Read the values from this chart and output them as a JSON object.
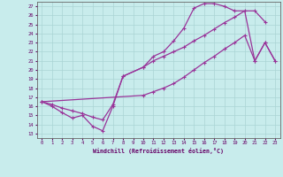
{
  "xlabel": "Windchill (Refroidissement éolien,°C)",
  "xlim": [
    -0.5,
    23.5
  ],
  "ylim": [
    12.5,
    27.5
  ],
  "xticks": [
    0,
    1,
    2,
    3,
    4,
    5,
    6,
    7,
    8,
    9,
    10,
    11,
    12,
    13,
    14,
    15,
    16,
    17,
    18,
    19,
    20,
    21,
    22,
    23
  ],
  "yticks": [
    13,
    14,
    15,
    16,
    17,
    18,
    19,
    20,
    21,
    22,
    23,
    24,
    25,
    26,
    27
  ],
  "line_color": "#993399",
  "bg_color": "#c8ecec",
  "grid_color": "#aad4d4",
  "curve1_x": [
    0,
    1,
    2,
    3,
    4,
    5,
    6,
    7,
    8,
    10,
    11,
    12,
    13,
    14,
    15,
    16,
    17,
    18,
    19,
    21,
    22
  ],
  "curve1_y": [
    16.5,
    16.0,
    15.3,
    14.7,
    15.0,
    13.8,
    13.3,
    16.0,
    19.3,
    20.3,
    21.5,
    22.0,
    23.2,
    24.6,
    26.8,
    27.3,
    27.3,
    27.0,
    26.5,
    26.5,
    25.3
  ],
  "curve2_x": [
    0,
    1,
    2,
    3,
    4,
    5,
    6,
    7,
    8,
    10,
    11,
    12,
    13,
    14,
    15,
    16,
    17,
    18,
    19,
    20,
    21,
    22,
    23
  ],
  "curve2_y": [
    16.5,
    16.2,
    15.8,
    15.5,
    15.2,
    14.8,
    14.5,
    16.2,
    19.3,
    20.3,
    21.0,
    21.5,
    22.0,
    22.5,
    23.2,
    23.8,
    24.5,
    25.2,
    25.8,
    26.5,
    21.0,
    23.0,
    21.0
  ],
  "curve3_x": [
    0,
    10,
    11,
    12,
    13,
    14,
    15,
    16,
    17,
    18,
    19,
    20,
    21,
    22,
    23
  ],
  "curve3_y": [
    16.5,
    17.2,
    17.6,
    18.0,
    18.5,
    19.2,
    20.0,
    20.8,
    21.5,
    22.3,
    23.0,
    23.8,
    21.0,
    23.0,
    21.0
  ]
}
